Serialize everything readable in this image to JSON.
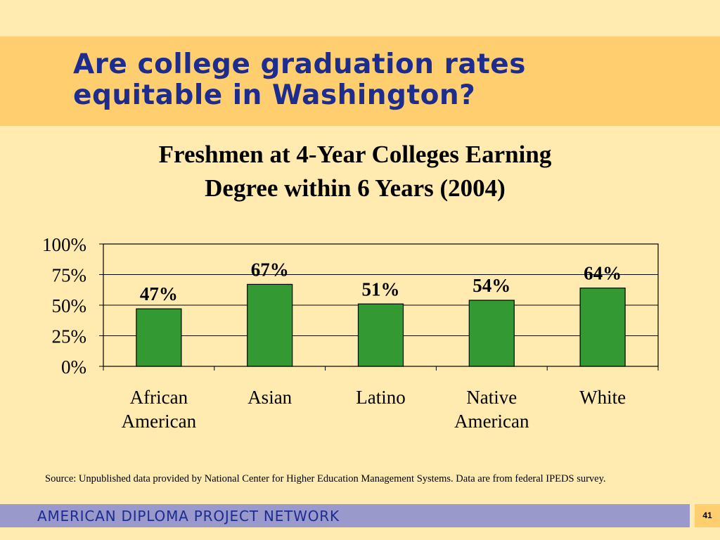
{
  "slide": {
    "title_lines": [
      "Are college graduation rates",
      "equitable in Washington?"
    ],
    "source": "Source:  Unpublished data provided by National Center for Higher Education Management Systems.  Data are from federal IPEDS survey.",
    "footer": "AMERICAN DIPLOMA PROJECT NETWORK",
    "page_number": "41"
  },
  "chart_data": {
    "type": "bar",
    "title_lines": [
      "Freshmen at 4-Year Colleges Earning",
      "Degree within 6 Years (2004)"
    ],
    "categories": [
      [
        "African",
        "American"
      ],
      [
        "Asian"
      ],
      [
        "Latino"
      ],
      [
        "Native",
        "American"
      ],
      [
        "White"
      ]
    ],
    "values": [
      47,
      67,
      51,
      54,
      64
    ],
    "data_labels": [
      "47%",
      "67%",
      "51%",
      "54%",
      "64%"
    ],
    "ylim": [
      0,
      100
    ],
    "yticks": [
      0,
      25,
      50,
      75,
      100
    ],
    "ytick_labels": [
      "0%",
      "25%",
      "50%",
      "75%",
      "100%"
    ],
    "grid": true,
    "xlabel": "",
    "ylabel": "",
    "bar_color": "#339933",
    "gridline_color": "#000000"
  }
}
